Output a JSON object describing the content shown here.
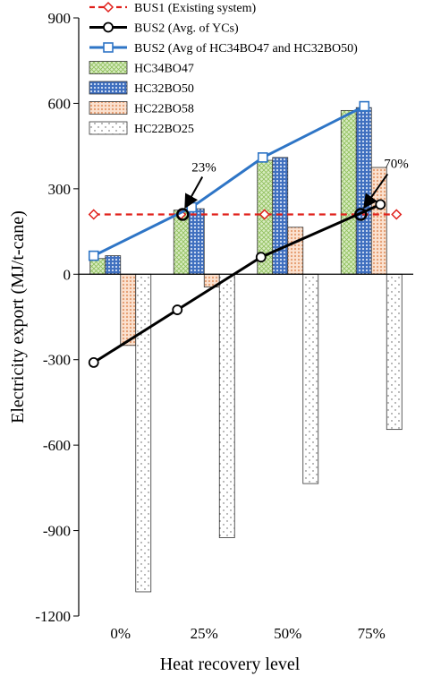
{
  "chart_data": {
    "type": "bar",
    "xlabel": "Heat recovery level",
    "ylabel": "Electricity export (MJ/t-cane)",
    "categories": [
      "0%",
      "25%",
      "50%",
      "75%"
    ],
    "ylim": [
      -1200,
      900
    ],
    "yticks": [
      -1200,
      -900,
      -600,
      -300,
      0,
      300,
      600,
      900
    ],
    "grid": false,
    "legend_position": "top-left",
    "bar_series": [
      {
        "name": "HC34BO47",
        "values": [
          55,
          225,
          400,
          575
        ],
        "color": "#c6e0a4",
        "pattern": "crosshatch-green"
      },
      {
        "name": "HC32BO50",
        "values": [
          65,
          230,
          410,
          585
        ],
        "color": "#4a78c8",
        "pattern": "dots-blue"
      },
      {
        "name": "HC22BO58",
        "values": [
          -250,
          -45,
          165,
          375
        ],
        "color": "#f4c4a2",
        "pattern": "dots-orange"
      },
      {
        "name": "HC22BO25",
        "values": [
          -1115,
          -925,
          -735,
          -545
        ],
        "color": "#ffffff",
        "pattern": "sparse-dots"
      }
    ],
    "line_series": [
      {
        "name": "BUS1 (Existing system)",
        "values": [
          210,
          210,
          210,
          210
        ],
        "color": "#e0201b",
        "style": "dashed",
        "marker": "diamond"
      },
      {
        "name": "BUS2 (Avg. of YCs)",
        "values": [
          -310,
          -125,
          60,
          245
        ],
        "color": "#000000",
        "style": "solid",
        "marker": "circle"
      },
      {
        "name": "BUS2 (Avg of HC34BO47 and  HC32BO50)",
        "values": [
          65,
          235,
          410,
          590
        ],
        "color": "#2e75c6",
        "style": "solid",
        "marker": "square"
      }
    ],
    "annotations": [
      {
        "text": "23%",
        "category": "25%"
      },
      {
        "text": "70%",
        "category": "75%"
      }
    ],
    "legend_order": [
      "BUS1 (Existing system)",
      "BUS2 (Avg. of YCs)",
      "BUS2 (Avg of HC34BO47 and  HC32BO50)",
      "HC34BO47",
      "HC32BO50",
      "HC22BO58",
      "HC22BO25"
    ]
  }
}
